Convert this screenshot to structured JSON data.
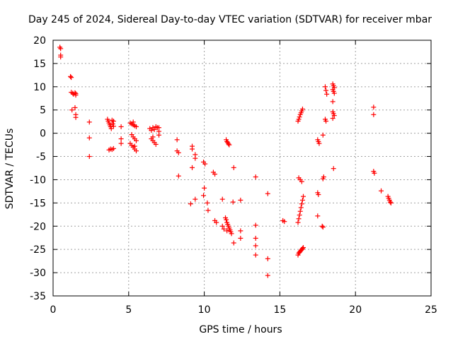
{
  "chart_data": {
    "type": "scatter",
    "title": "Day 245 of 2024, Sidereal Day-to-day VTEC variation (SDTVAR) for receiver mbar",
    "xlabel": "GPS time / hours",
    "ylabel": "SDTVAR / TECUs",
    "xlim": [
      0,
      25
    ],
    "ylim": [
      -35,
      20
    ],
    "xticks": [
      0,
      5,
      10,
      15,
      20,
      25
    ],
    "yticks": [
      20,
      15,
      10,
      5,
      0,
      -5,
      -10,
      -15,
      -20,
      -25,
      -30,
      -35
    ],
    "grid": true,
    "marker": "+",
    "series": [
      {
        "name": "SDTVAR",
        "color": "#ff0000",
        "points": [
          [
            0.45,
            18.5
          ],
          [
            0.5,
            18.2
          ],
          [
            0.5,
            16.8
          ],
          [
            0.5,
            16.4
          ],
          [
            1.15,
            12.2
          ],
          [
            1.2,
            12.0
          ],
          [
            1.2,
            8.8
          ],
          [
            1.3,
            8.6
          ],
          [
            1.35,
            8.4
          ],
          [
            1.45,
            8.7
          ],
          [
            1.5,
            8.5
          ],
          [
            1.5,
            8.2
          ],
          [
            1.25,
            5.0
          ],
          [
            1.45,
            5.5
          ],
          [
            1.5,
            4.0
          ],
          [
            1.5,
            3.4
          ],
          [
            2.4,
            2.4
          ],
          [
            2.4,
            -1.0
          ],
          [
            2.4,
            -5.0
          ],
          [
            3.6,
            3.0
          ],
          [
            3.65,
            2.6
          ],
          [
            3.7,
            2.2
          ],
          [
            3.75,
            1.8
          ],
          [
            3.8,
            1.4
          ],
          [
            3.85,
            1.0
          ],
          [
            3.9,
            2.8
          ],
          [
            3.95,
            2.0
          ],
          [
            4.0,
            1.5
          ],
          [
            4.0,
            2.6
          ],
          [
            3.7,
            -3.6
          ],
          [
            3.8,
            -3.4
          ],
          [
            3.9,
            -3.5
          ],
          [
            4.0,
            -3.3
          ],
          [
            4.5,
            1.4
          ],
          [
            4.5,
            -1.2
          ],
          [
            4.5,
            -2.2
          ],
          [
            5.1,
            2.2
          ],
          [
            5.2,
            2.0
          ],
          [
            5.3,
            1.8
          ],
          [
            5.4,
            1.6
          ],
          [
            5.5,
            1.4
          ],
          [
            5.3,
            2.4
          ],
          [
            5.2,
            -0.3
          ],
          [
            5.3,
            -0.8
          ],
          [
            5.4,
            -1.2
          ],
          [
            5.5,
            -1.6
          ],
          [
            5.1,
            -2.2
          ],
          [
            5.2,
            -2.6
          ],
          [
            5.3,
            -3.0
          ],
          [
            5.4,
            -3.4
          ],
          [
            5.5,
            -3.8
          ],
          [
            5.4,
            -2.8
          ],
          [
            6.4,
            1.0
          ],
          [
            6.5,
            0.6
          ],
          [
            6.6,
            1.2
          ],
          [
            6.7,
            0.8
          ],
          [
            6.8,
            1.4
          ],
          [
            6.9,
            1.2
          ],
          [
            6.5,
            -1.2
          ],
          [
            6.6,
            -1.6
          ],
          [
            6.7,
            -2.0
          ],
          [
            6.8,
            -2.4
          ],
          [
            6.6,
            -0.8
          ],
          [
            7.0,
            1.2
          ],
          [
            7.0,
            0.4
          ],
          [
            7.0,
            -0.4
          ],
          [
            8.2,
            -1.4
          ],
          [
            8.2,
            -3.8
          ],
          [
            8.3,
            -4.2
          ],
          [
            8.3,
            -9.2
          ],
          [
            9.2,
            -2.8
          ],
          [
            9.2,
            -3.4
          ],
          [
            9.2,
            -7.4
          ],
          [
            9.1,
            -15.2
          ],
          [
            9.4,
            -4.6
          ],
          [
            9.4,
            -5.4
          ],
          [
            9.4,
            -14.2
          ],
          [
            9.95,
            -6.2
          ],
          [
            10.05,
            -6.6
          ],
          [
            10.0,
            -11.8
          ],
          [
            9.95,
            -13.4
          ],
          [
            10.2,
            -15.0
          ],
          [
            10.25,
            -16.6
          ],
          [
            10.6,
            -8.4
          ],
          [
            10.7,
            -8.8
          ],
          [
            10.7,
            -18.8
          ],
          [
            10.8,
            -19.2
          ],
          [
            11.2,
            -14.2
          ],
          [
            11.2,
            -20.0
          ],
          [
            11.3,
            -20.6
          ],
          [
            11.45,
            -1.4
          ],
          [
            11.5,
            -1.8
          ],
          [
            11.55,
            -2.0
          ],
          [
            11.6,
            -2.3
          ],
          [
            11.65,
            -2.5
          ],
          [
            11.4,
            -18.2
          ],
          [
            11.45,
            -18.6
          ],
          [
            11.5,
            -19.2
          ],
          [
            11.55,
            -19.6
          ],
          [
            11.6,
            -20.0
          ],
          [
            11.65,
            -20.4
          ],
          [
            11.7,
            -20.8
          ],
          [
            11.75,
            -21.2
          ],
          [
            11.8,
            -21.6
          ],
          [
            11.5,
            -21.0
          ],
          [
            11.9,
            -14.8
          ],
          [
            11.95,
            -7.4
          ],
          [
            11.95,
            -23.6
          ],
          [
            12.4,
            -14.4
          ],
          [
            12.4,
            -21.0
          ],
          [
            12.4,
            -22.6
          ],
          [
            13.4,
            -9.4
          ],
          [
            13.4,
            -19.8
          ],
          [
            13.4,
            -22.6
          ],
          [
            13.4,
            -24.2
          ],
          [
            13.4,
            -26.2
          ],
          [
            14.2,
            -13.0
          ],
          [
            14.2,
            -27.0
          ],
          [
            14.2,
            -30.6
          ],
          [
            15.2,
            -18.8
          ],
          [
            15.3,
            -19.0
          ],
          [
            16.2,
            2.6
          ],
          [
            16.25,
            3.0
          ],
          [
            16.3,
            3.5
          ],
          [
            16.35,
            4.0
          ],
          [
            16.4,
            4.4
          ],
          [
            16.45,
            4.8
          ],
          [
            16.5,
            5.2
          ],
          [
            16.25,
            -9.6
          ],
          [
            16.35,
            -10.0
          ],
          [
            16.45,
            -10.4
          ],
          [
            16.2,
            -19.2
          ],
          [
            16.25,
            -18.4
          ],
          [
            16.3,
            -17.6
          ],
          [
            16.35,
            -16.8
          ],
          [
            16.4,
            -16.0
          ],
          [
            16.45,
            -15.2
          ],
          [
            16.5,
            -14.4
          ],
          [
            16.55,
            -13.6
          ],
          [
            16.2,
            -26.2
          ],
          [
            16.25,
            -25.8
          ],
          [
            16.3,
            -25.6
          ],
          [
            16.35,
            -25.4
          ],
          [
            16.4,
            -25.2
          ],
          [
            16.45,
            -25.0
          ],
          [
            16.5,
            -24.8
          ],
          [
            16.55,
            -24.6
          ],
          [
            17.5,
            -1.4
          ],
          [
            17.55,
            -1.8
          ],
          [
            17.6,
            -2.2
          ],
          [
            17.5,
            -12.8
          ],
          [
            17.55,
            -13.2
          ],
          [
            17.5,
            -17.8
          ],
          [
            17.8,
            -20.0
          ],
          [
            17.85,
            -20.2
          ],
          [
            17.85,
            -0.4
          ],
          [
            17.9,
            -9.4
          ],
          [
            17.85,
            -9.8
          ],
          [
            18.0,
            10.0
          ],
          [
            18.05,
            9.2
          ],
          [
            18.1,
            8.4
          ],
          [
            18.0,
            3.0
          ],
          [
            18.05,
            2.6
          ],
          [
            18.5,
            10.6
          ],
          [
            18.55,
            10.2
          ],
          [
            18.6,
            9.8
          ],
          [
            18.5,
            9.4
          ],
          [
            18.55,
            9.0
          ],
          [
            18.6,
            8.6
          ],
          [
            18.5,
            6.8
          ],
          [
            18.5,
            4.6
          ],
          [
            18.55,
            4.2
          ],
          [
            18.6,
            3.8
          ],
          [
            18.5,
            3.2
          ],
          [
            18.55,
            -7.6
          ],
          [
            21.2,
            5.6
          ],
          [
            21.2,
            4.0
          ],
          [
            21.2,
            -8.2
          ],
          [
            21.25,
            -8.6
          ],
          [
            21.7,
            -12.4
          ],
          [
            22.15,
            -13.6
          ],
          [
            22.2,
            -14.0
          ],
          [
            22.25,
            -14.4
          ],
          [
            22.3,
            -14.8
          ],
          [
            22.35,
            -15.0
          ]
        ]
      }
    ]
  }
}
